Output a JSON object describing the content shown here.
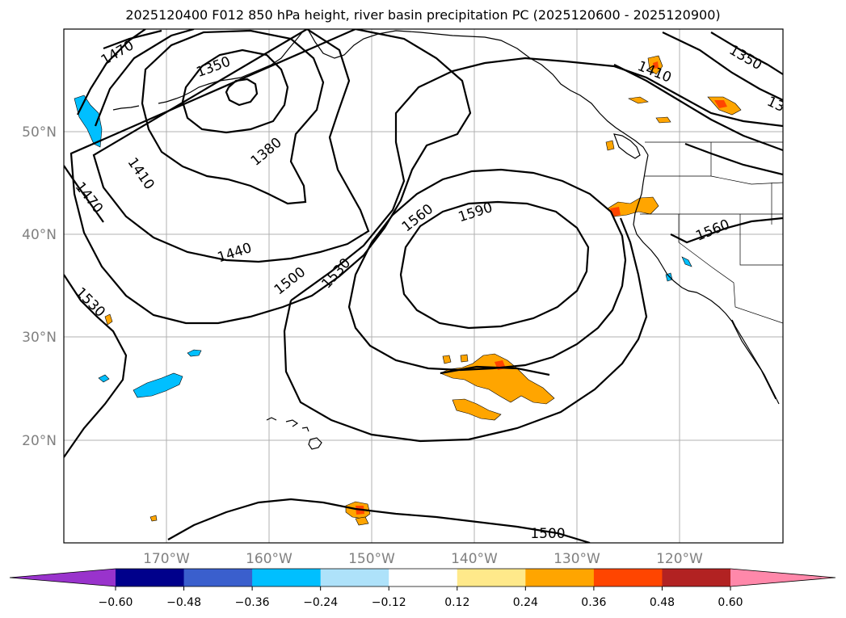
{
  "title": "2025120400 F012 850 hPa height, river basin precipitation PC (2025120600 - 2025120900)",
  "map": {
    "lat_labels": [
      "50°N",
      "40°N",
      "30°N",
      "20°N"
    ],
    "lon_labels": [
      "170°W",
      "160°W",
      "150°W",
      "140°W",
      "130°W",
      "120°W"
    ],
    "contour_labels": [
      "1470",
      "1350",
      "1380",
      "1410",
      "1470",
      "1440",
      "1500",
      "1530",
      "1560",
      "1590",
      "1530",
      "1560",
      "1350",
      "1410",
      "13",
      "1500"
    ]
  },
  "colorbar": {
    "colors": [
      "#9933cc",
      "#00008b",
      "#3a5fcd",
      "#00bfff",
      "#aee2fa",
      "#ffffff",
      "#ffe98a",
      "#ffa500",
      "#ff4500",
      "#b22222",
      "#ff88aa"
    ],
    "tick_labels": [
      "−0.60",
      "−0.48",
      "−0.36",
      "−0.24",
      "−0.12",
      "0.12",
      "0.24",
      "0.36",
      "0.48",
      "0.60"
    ]
  }
}
